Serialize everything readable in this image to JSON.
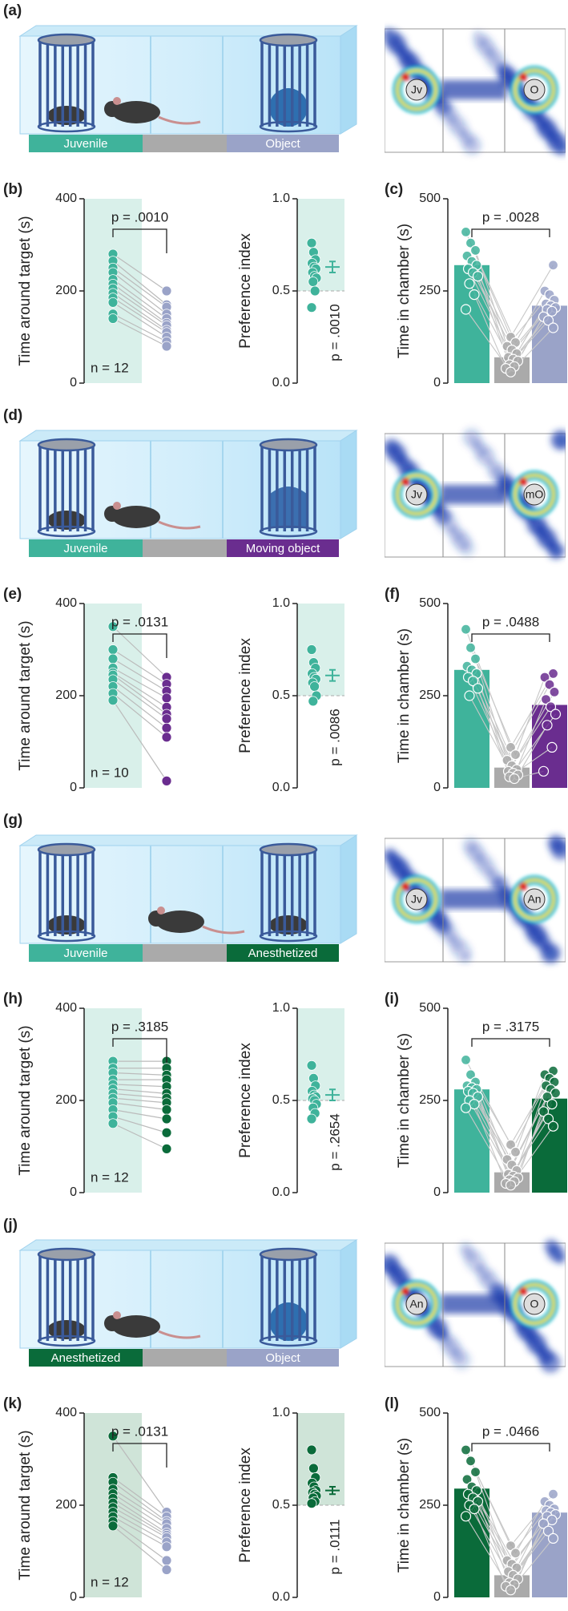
{
  "groups": [
    {
      "diagram": {
        "letter": "(a)",
        "left_label": "Juvenile",
        "right_label": "Object",
        "colors": [
          "#3fb39b",
          "#aaaaaa",
          "#9aa3c8"
        ],
        "heat_left": "Jv",
        "heat_right": "O"
      },
      "chart_data": [
        {
          "type": "paired",
          "letter": "(b)",
          "y_label": "Time around target (s)",
          "ylim": [
            0,
            400
          ],
          "yticks": [
            0,
            200,
            400
          ],
          "shade": "#d9f0ea",
          "annotation": "p = .0010",
          "n_label": "n = 12",
          "series": [
            {
              "color": "#3fb39b",
              "values": [
                280,
                265,
                250,
                240,
                225,
                215,
                205,
                195,
                185,
                175,
                150,
                140
              ]
            },
            {
              "color": "#9aa3c8",
              "values": [
                200,
                170,
                165,
                150,
                140,
                130,
                125,
                115,
                110,
                100,
                90,
                80
              ]
            }
          ]
        },
        {
          "type": "dot",
          "y_label": "Preference index",
          "ylim": [
            0,
            1
          ],
          "yticks": [
            {
              "value": 0,
              "label": "0.0"
            },
            {
              "value": 0.5,
              "label": "0.5"
            },
            {
              "value": 1,
              "label": "1.0"
            }
          ],
          "shade": "#d9f0ea",
          "reference": 0.5,
          "color": "#3fb39b",
          "values": [
            0.76,
            0.71,
            0.67,
            0.65,
            0.63,
            0.62,
            0.6,
            0.58,
            0.57,
            0.55,
            0.5,
            0.41
          ],
          "mean": 0.63,
          "sem": 0.03,
          "annotation": "p = .0010"
        },
        {
          "type": "bar",
          "letter": "(c)",
          "y_label": "Time in chamber (s)",
          "ylim": [
            0,
            500
          ],
          "yticks": [
            0,
            250,
            500
          ],
          "annotation": "p = .0028",
          "values": [
            320,
            70,
            210
          ],
          "colors": [
            "#3fb39b",
            "#aaaaaa",
            "#9aa3c8"
          ],
          "points": [
            [
              410,
              380,
              360,
              345,
              330,
              320,
              310,
              300,
              290,
              270,
              240,
              200
            ],
            [
              125,
              110,
              100,
              90,
              80,
              70,
              65,
              60,
              50,
              45,
              40,
              30
            ],
            [
              320,
              250,
              240,
              225,
              215,
              210,
              205,
              200,
              195,
              180,
              170,
              150
            ]
          ]
        }
      ]
    },
    {
      "diagram": {
        "letter": "(d)",
        "left_label": "Juvenile",
        "right_label": "Moving object",
        "colors": [
          "#3fb39b",
          "#aaaaaa",
          "#6a2d8f"
        ],
        "heat_left": "Jv",
        "heat_right": "mO"
      },
      "chart_data": [
        {
          "type": "paired",
          "letter": "(e)",
          "y_label": "Time around target (s)",
          "ylim": [
            0,
            400
          ],
          "yticks": [
            0,
            200,
            400
          ],
          "shade": "#d9f0ea",
          "annotation": "p = .0131",
          "n_label": "n = 10",
          "series": [
            {
              "color": "#3fb39b",
              "values": [
                350,
                300,
                280,
                260,
                250,
                245,
                235,
                220,
                205,
                190
              ]
            },
            {
              "color": "#6a2d8f",
              "values": [
                240,
                225,
                210,
                195,
                175,
                160,
                150,
                130,
                110,
                15
              ]
            }
          ]
        },
        {
          "type": "dot",
          "y_label": "Preference index",
          "ylim": [
            0,
            1
          ],
          "yticks": [
            {
              "value": 0,
              "label": "0.0"
            },
            {
              "value": 0.5,
              "label": "0.5"
            },
            {
              "value": 1,
              "label": "1.0"
            }
          ],
          "shade": "#d9f0ea",
          "reference": 0.5,
          "color": "#3fb39b",
          "values": [
            0.75,
            0.68,
            0.65,
            0.62,
            0.6,
            0.59,
            0.57,
            0.55,
            0.5,
            0.47
          ],
          "mean": 0.61,
          "sem": 0.03,
          "annotation": "p = .0086"
        },
        {
          "type": "bar",
          "letter": "(f)",
          "y_label": "Time in chamber (s)",
          "ylim": [
            0,
            500
          ],
          "yticks": [
            0,
            250,
            500
          ],
          "annotation": "p = .0488",
          "values": [
            320,
            55,
            225
          ],
          "colors": [
            "#3fb39b",
            "#aaaaaa",
            "#6a2d8f"
          ],
          "points": [
            [
              430,
              380,
              350,
              330,
              320,
              310,
              300,
              290,
              270,
              250
            ],
            [
              110,
              90,
              75,
              60,
              50,
              45,
              40,
              35,
              30,
              25
            ],
            [
              310,
              300,
              280,
              260,
              240,
              220,
              200,
              170,
              110,
              45
            ]
          ]
        }
      ]
    },
    {
      "diagram": {
        "letter": "(g)",
        "left_label": "Juvenile",
        "right_label": "Anesthetized",
        "colors": [
          "#3fb39b",
          "#aaaaaa",
          "#0a6b3a"
        ],
        "heat_left": "Jv",
        "heat_right": "An"
      },
      "chart_data": [
        {
          "type": "paired",
          "letter": "(h)",
          "y_label": "Time around target (s)",
          "ylim": [
            0,
            400
          ],
          "yticks": [
            0,
            200,
            400
          ],
          "shade": "#d9f0ea",
          "annotation": "p = .3185",
          "n_label": "n = 12",
          "series": [
            {
              "color": "#3fb39b",
              "values": [
                285,
                270,
                260,
                245,
                235,
                225,
                215,
                205,
                195,
                180,
                165,
                150
              ]
            },
            {
              "color": "#0a6b3a",
              "values": [
                285,
                270,
                255,
                245,
                230,
                215,
                205,
                195,
                180,
                160,
                130,
                95
              ]
            }
          ]
        },
        {
          "type": "dot",
          "y_label": "Preference index",
          "ylim": [
            0,
            1
          ],
          "yticks": [
            {
              "value": 0,
              "label": "0.0"
            },
            {
              "value": 0.5,
              "label": "0.5"
            },
            {
              "value": 1,
              "label": "1.0"
            }
          ],
          "shade": "#d9f0ea",
          "reference": 0.5,
          "color": "#3fb39b",
          "values": [
            0.69,
            0.62,
            0.58,
            0.55,
            0.53,
            0.52,
            0.51,
            0.5,
            0.48,
            0.46,
            0.43,
            0.4
          ],
          "mean": 0.53,
          "sem": 0.03,
          "annotation": "p = .2654"
        },
        {
          "type": "bar",
          "letter": "(i)",
          "y_label": "Time in chamber (s)",
          "ylim": [
            0,
            500
          ],
          "yticks": [
            0,
            250,
            500
          ],
          "annotation": "p = .3175",
          "values": [
            280,
            55,
            255
          ],
          "colors": [
            "#3fb39b",
            "#aaaaaa",
            "#0a6b3a"
          ],
          "points": [
            [
              360,
              320,
              300,
              290,
              285,
              280,
              275,
              270,
              260,
              250,
              240,
              230
            ],
            [
              130,
              110,
              90,
              75,
              60,
              50,
              45,
              40,
              35,
              30,
              25,
              20
            ],
            [
              330,
              320,
              310,
              300,
              290,
              280,
              270,
              260,
              240,
              220,
              200,
              180
            ]
          ]
        }
      ]
    },
    {
      "diagram": {
        "letter": "(j)",
        "left_label": "Anesthetized",
        "right_label": "Object",
        "colors": [
          "#0a6b3a",
          "#aaaaaa",
          "#9aa3c8"
        ],
        "heat_left": "An",
        "heat_right": "O"
      },
      "chart_data": [
        {
          "type": "paired",
          "letter": "(k)",
          "y_label": "Time around target (s)",
          "ylim": [
            0,
            400
          ],
          "yticks": [
            0,
            200,
            400
          ],
          "shade": "#cfe4d8",
          "annotation": "p = .0131",
          "n_label": "n = 12",
          "series": [
            {
              "color": "#0a6b3a",
              "values": [
                350,
                260,
                250,
                235,
                225,
                215,
                205,
                195,
                185,
                175,
                165,
                155
              ]
            },
            {
              "color": "#9aa3c8",
              "values": [
                185,
                175,
                165,
                160,
                150,
                140,
                135,
                130,
                120,
                110,
                80,
                60
              ]
            }
          ]
        },
        {
          "type": "dot",
          "y_label": "Preference index",
          "ylim": [
            0,
            1
          ],
          "yticks": [
            {
              "value": 0,
              "label": "0.0"
            },
            {
              "value": 0.5,
              "label": "0.5"
            },
            {
              "value": 1,
              "label": "1.0"
            }
          ],
          "shade": "#cfe4d8",
          "reference": 0.5,
          "color": "#0a6b3a",
          "values": [
            0.8,
            0.7,
            0.65,
            0.62,
            0.6,
            0.58,
            0.57,
            0.56,
            0.55,
            0.54,
            0.52,
            0.51
          ],
          "mean": 0.58,
          "sem": 0.02,
          "annotation": "p = .0111"
        },
        {
          "type": "bar",
          "letter": "(l)",
          "y_label": "Time in chamber (s)",
          "ylim": [
            0,
            500
          ],
          "yticks": [
            0,
            250,
            500
          ],
          "annotation": "p = .0466",
          "values": [
            295,
            60,
            230
          ],
          "colors": [
            "#0a6b3a",
            "#aaaaaa",
            "#9aa3c8"
          ],
          "points": [
            [
              400,
              370,
              340,
              320,
              300,
              290,
              280,
              270,
              260,
              250,
              240,
              220
            ],
            [
              140,
              120,
              100,
              90,
              80,
              70,
              60,
              50,
              40,
              35,
              30,
              20
            ],
            [
              280,
              260,
              250,
              240,
              235,
              230,
              225,
              220,
              210,
              200,
              180,
              160
            ]
          ]
        }
      ]
    }
  ]
}
